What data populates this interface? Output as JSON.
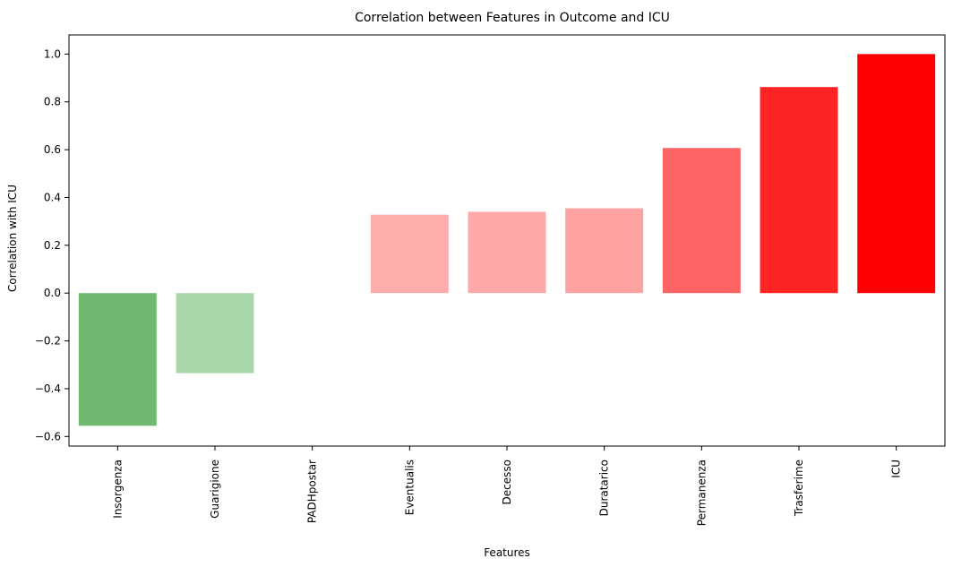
{
  "chart_data": {
    "type": "bar",
    "title": "Correlation between Features in Outcome and ICU",
    "xlabel": "Features",
    "ylabel": "Correlation with ICU",
    "categories": [
      "Insorgenza",
      "Guarigione",
      "PADHpostar",
      "Eventualis",
      "Decesso",
      "Duratarico",
      "Permanenza",
      "Trasferime",
      "ICU"
    ],
    "values": [
      -0.555,
      -0.335,
      0.0,
      0.328,
      0.34,
      0.355,
      0.607,
      0.862,
      1.0
    ],
    "colors": [
      "#70b870",
      "#a9d6a9",
      "#ffffff",
      "#ffacac",
      "#ffa8a8",
      "#ffa2a2",
      "#ff6464",
      "#ff2424",
      "#ff0000"
    ],
    "ylim": [
      -0.64,
      1.08
    ],
    "yticks": [
      -0.6,
      -0.4,
      -0.2,
      0.0,
      0.2,
      0.4,
      0.6,
      0.8,
      1.0
    ],
    "ytick_labels": [
      "−0.6",
      "−0.4",
      "−0.2",
      "0.0",
      "0.2",
      "0.4",
      "0.6",
      "0.8",
      "1.0"
    ],
    "grid": false,
    "legend": "none"
  }
}
